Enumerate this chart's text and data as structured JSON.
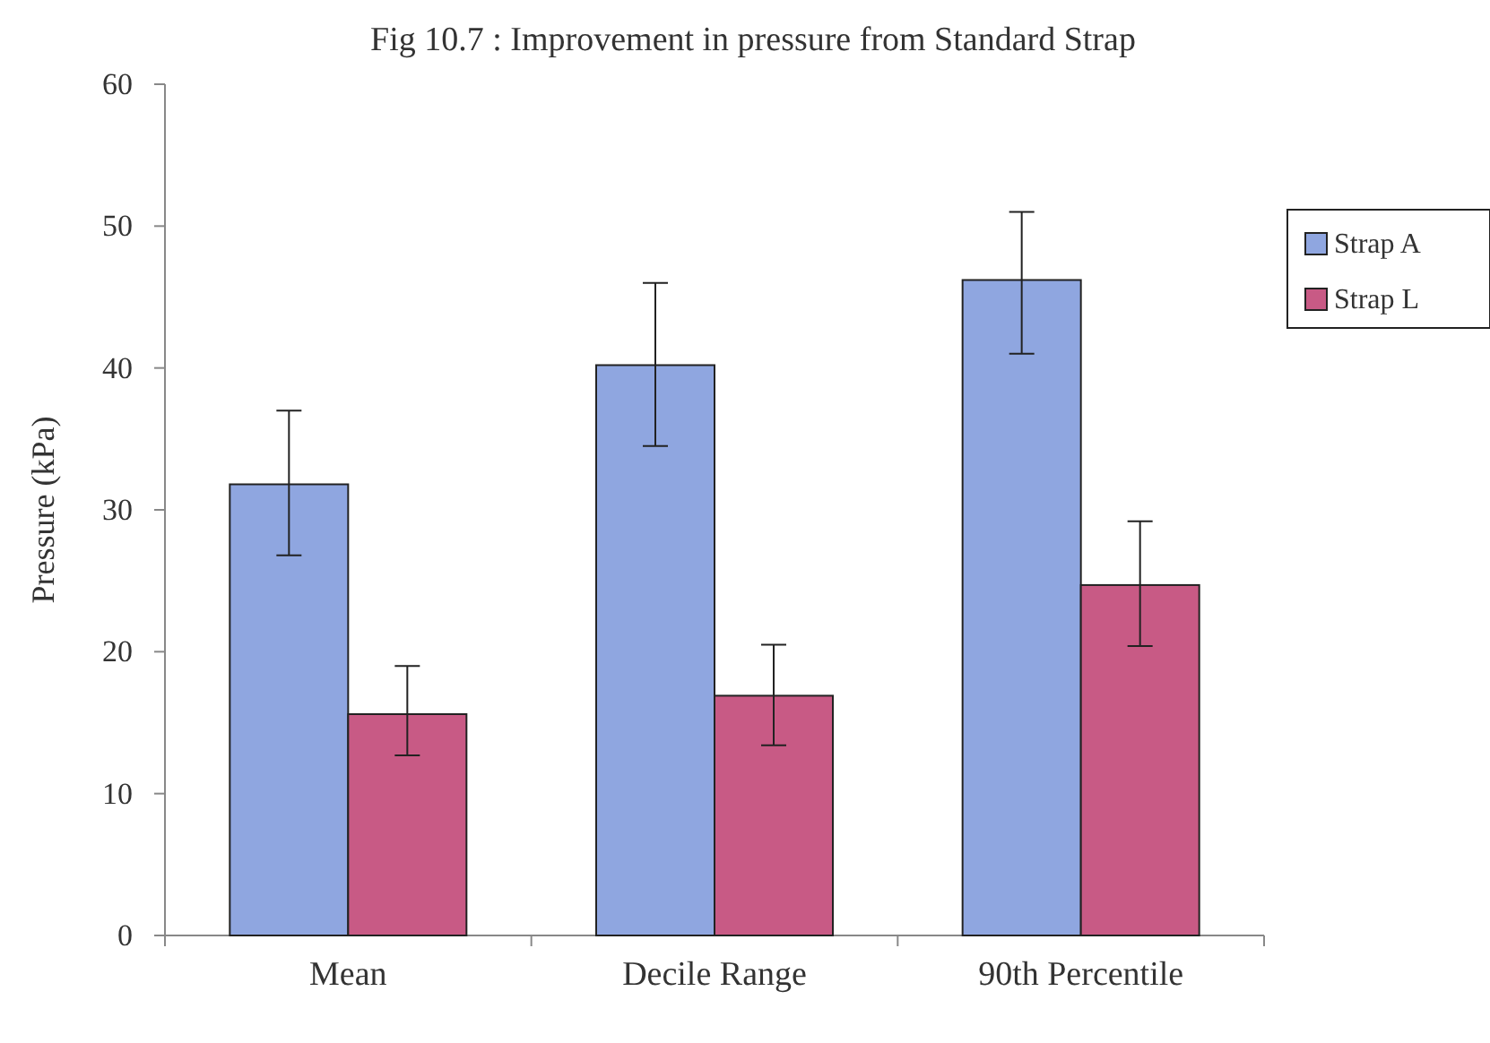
{
  "chart_data": {
    "type": "bar",
    "title": "Fig 10.7 : Improvement in pressure from Standard Strap",
    "ylabel": "Pressure (kPa)",
    "categories": [
      "Mean",
      "Decile Range",
      "90th Percentile"
    ],
    "series": [
      {
        "name": "Strap A",
        "color": "#8fa6e0",
        "values": [
          31.8,
          40.2,
          46.2
        ],
        "errors": [
          [
            26.8,
            37
          ],
          [
            34.5,
            46
          ],
          [
            41,
            51
          ]
        ]
      },
      {
        "name": "Strap L",
        "color": "#c85a85",
        "values": [
          15.6,
          16.9,
          24.7
        ],
        "errors": [
          [
            12.7,
            19
          ],
          [
            13.4,
            20.5
          ],
          [
            20.4,
            29.2
          ]
        ]
      }
    ],
    "ylim": [
      0,
      60
    ],
    "yticks": [
      0,
      10,
      20,
      30,
      40,
      50,
      60
    ],
    "grid": false,
    "legend": "top right"
  }
}
